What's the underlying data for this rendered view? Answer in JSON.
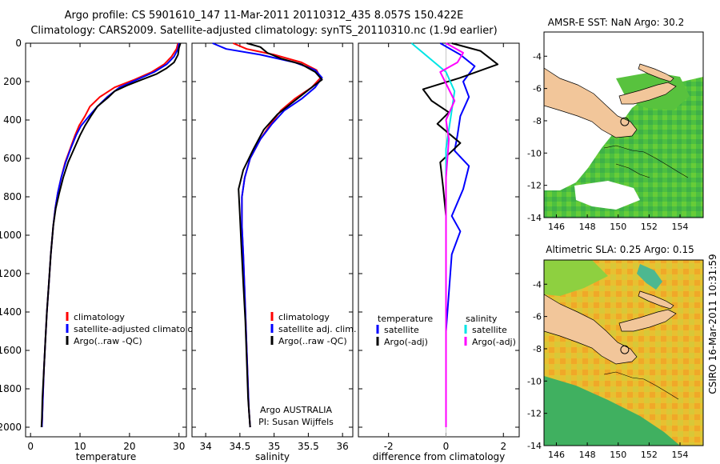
{
  "header": {
    "line1": "Argo profile: CS 5901610_147 11-Mar-2011 20110312_435 8.057S 150.422E",
    "line2": "Climatology: CARS2009. Satellite-adjusted climatology: synTS_20110310.nc (1.9d earlier)"
  },
  "credit": "CSIRO 16-Mar-2011 10:31:59",
  "colors": {
    "climatology": "#ff0000",
    "satellite": "#0000ff",
    "argo": "#000000",
    "sal_satellite": "#00e5e5",
    "sal_argo": "#ff00ff",
    "land": "#f2c69a"
  },
  "chart_data": [
    {
      "type": "line",
      "xlabel": "temperature",
      "ylabel": "",
      "xlim": [
        -1,
        31.5
      ],
      "ylim": [
        2050,
        0
      ],
      "y_reversed": true,
      "xticks": [
        0,
        10,
        20,
        30
      ],
      "yticks": [
        0,
        200,
        400,
        600,
        800,
        1000,
        1200,
        1400,
        1600,
        1800,
        2000
      ],
      "legend_position": "lower-right",
      "series": [
        {
          "name": "climatology",
          "color": "#ff0000",
          "x": [
            29.8,
            29.5,
            28.5,
            27.0,
            24.5,
            21.0,
            17.0,
            14.0,
            12.0,
            11.0,
            9.8,
            9.0,
            8.0,
            7.0,
            6.2,
            5.5,
            5.0,
            4.6,
            4.1,
            3.7,
            3.3,
            3.0,
            2.7,
            2.5,
            2.3
          ],
          "y": [
            0,
            30,
            70,
            110,
            150,
            190,
            230,
            280,
            330,
            380,
            430,
            480,
            550,
            620,
            700,
            780,
            860,
            950,
            1100,
            1250,
            1400,
            1550,
            1700,
            1850,
            2000
          ]
        },
        {
          "name": "satellite-adjusted climatology",
          "color": "#0000ff",
          "x": [
            30.0,
            29.8,
            29.0,
            27.5,
            25.0,
            21.5,
            18.0,
            15.5,
            13.5,
            11.8,
            10.2,
            9.2,
            8.1,
            7.1,
            6.2,
            5.5,
            5.0,
            4.6,
            4.1,
            3.7,
            3.3,
            3.0,
            2.7,
            2.5,
            2.3
          ],
          "y": [
            0,
            30,
            70,
            110,
            150,
            190,
            230,
            280,
            330,
            380,
            430,
            480,
            550,
            620,
            700,
            780,
            860,
            950,
            1100,
            1250,
            1400,
            1550,
            1700,
            1850,
            2000
          ]
        },
        {
          "name": "Argo(..raw -QC)",
          "color": "#000000",
          "x": [
            30.3,
            30.0,
            29.8,
            29.0,
            27.5,
            25.5,
            22.5,
            19.5,
            17.0,
            15.8,
            13.5,
            12.2,
            11.0,
            10.0,
            8.8,
            7.6,
            6.6,
            5.8,
            5.1,
            4.6,
            4.1,
            3.7,
            3.3,
            3.0,
            2.7,
            2.4,
            2.3,
            2.2
          ],
          "y": [
            0,
            25,
            60,
            100,
            130,
            160,
            190,
            220,
            250,
            280,
            330,
            380,
            430,
            480,
            550,
            620,
            700,
            780,
            860,
            950,
            1100,
            1250,
            1400,
            1550,
            1700,
            1850,
            1950,
            2000
          ]
        }
      ]
    },
    {
      "type": "line",
      "xlabel": "salinity",
      "ylabel": "",
      "xlim": [
        33.8,
        36.15
      ],
      "ylim": [
        2050,
        0
      ],
      "y_reversed": true,
      "xticks": [
        34,
        34.5,
        35,
        35.5,
        36
      ],
      "legend_position": "lower-right",
      "annotations": [
        "Argo AUSTRALIA",
        "PI: Susan Wijffels"
      ],
      "series": [
        {
          "name": "climatology",
          "color": "#ff0000",
          "x": [
            34.4,
            34.6,
            35.0,
            35.4,
            35.62,
            35.68,
            35.55,
            35.3,
            35.1,
            34.95,
            34.8,
            34.65,
            34.57,
            34.53,
            34.53,
            34.55,
            34.57,
            34.59,
            34.61,
            34.63,
            34.65
          ],
          "y": [
            0,
            30,
            60,
            100,
            140,
            180,
            230,
            290,
            350,
            420,
            500,
            600,
            700,
            800,
            950,
            1100,
            1300,
            1500,
            1700,
            1900,
            2000
          ]
        },
        {
          "name": "satellite adj. clim.",
          "color": "#0000ff",
          "x": [
            34.1,
            34.3,
            34.8,
            35.3,
            35.6,
            35.7,
            35.6,
            35.4,
            35.15,
            34.97,
            34.8,
            34.65,
            34.57,
            34.53,
            34.53,
            34.55,
            34.57,
            34.59,
            34.61,
            34.63,
            34.65
          ],
          "y": [
            0,
            30,
            60,
            100,
            140,
            180,
            230,
            290,
            350,
            420,
            500,
            600,
            700,
            800,
            950,
            1100,
            1300,
            1500,
            1700,
            1900,
            2000
          ]
        },
        {
          "name": "Argo(..raw -QC)",
          "color": "#000000",
          "x": [
            34.6,
            34.8,
            34.9,
            35.1,
            35.4,
            35.6,
            35.7,
            35.55,
            35.3,
            35.05,
            34.85,
            34.7,
            34.55,
            34.48,
            34.5,
            34.52,
            34.55,
            34.58,
            34.6,
            34.62,
            34.64,
            34.65
          ],
          "y": [
            0,
            20,
            50,
            80,
            110,
            150,
            190,
            230,
            300,
            370,
            450,
            550,
            660,
            760,
            900,
            1050,
            1250,
            1450,
            1650,
            1850,
            1950,
            2000
          ]
        }
      ]
    },
    {
      "type": "line",
      "xlabel": "difference from climatology",
      "ylabel": "",
      "xlim": [
        -3.05,
        2.55
      ],
      "ylim": [
        2050,
        0
      ],
      "y_reversed": true,
      "xticks": [
        -2,
        0,
        2
      ],
      "legend_position": "lower-center",
      "legend_titles": [
        "temperature",
        "salinity"
      ],
      "series": [
        {
          "name": "satellite",
          "group": "temperature",
          "color": "#0000ff",
          "x": [
            -0.2,
            0.5,
            1.0,
            0.6,
            0.8,
            0.5,
            0.4,
            0.3,
            0.8,
            0.6,
            0.2,
            0.5,
            0.2,
            0.1,
            0.0,
            0.0,
            0.0
          ],
          "y": [
            0,
            60,
            120,
            200,
            280,
            380,
            480,
            560,
            640,
            760,
            900,
            980,
            1100,
            1300,
            1500,
            1750,
            2000
          ]
        },
        {
          "name": "Argo(-adj)",
          "group": "temperature",
          "color": "#000000",
          "x": [
            0.2,
            1.2,
            1.8,
            0.5,
            -0.8,
            -0.5,
            0.1,
            -0.3,
            0.5,
            -0.2,
            -0.1,
            0.0,
            0.0,
            0.0
          ],
          "y": [
            0,
            40,
            110,
            180,
            240,
            300,
            360,
            420,
            520,
            620,
            750,
            900,
            1200,
            2000
          ]
        },
        {
          "name": "satellite",
          "group": "salinity",
          "color": "#00e5e5",
          "x": [
            -1.2,
            -0.8,
            -0.4,
            0.0,
            0.3,
            0.2,
            0.1,
            0.0,
            0.0,
            0.0,
            0.0
          ],
          "y": [
            0,
            50,
            100,
            150,
            250,
            350,
            450,
            550,
            700,
            1000,
            2000
          ]
        },
        {
          "name": "Argo(-adj)",
          "group": "salinity",
          "color": "#ff00ff",
          "x": [
            0.0,
            0.6,
            0.4,
            -0.2,
            0.3,
            0.0,
            0.1,
            0.0,
            0.0,
            0.0
          ],
          "y": [
            0,
            50,
            100,
            150,
            300,
            400,
            500,
            700,
            1000,
            2000
          ]
        }
      ]
    },
    {
      "type": "heatmap",
      "title": "AMSR-E SST: NaN Argo: 30.2",
      "xlim": [
        145.2,
        155.5
      ],
      "ylim": [
        -14,
        -2.5
      ],
      "xticks": [
        146,
        148,
        150,
        152,
        154
      ],
      "yticks": [
        -4,
        -6,
        -8,
        -10,
        -12,
        -14
      ],
      "marker": {
        "lon": 150.422,
        "lat": -8.057
      }
    },
    {
      "type": "heatmap",
      "title": "Altimetric SLA: 0.25 Argo: 0.15",
      "xlim": [
        145.2,
        155.5
      ],
      "ylim": [
        -14,
        -2.5
      ],
      "xticks": [
        146,
        148,
        150,
        152,
        154
      ],
      "yticks": [
        -4,
        -6,
        -8,
        -10,
        -12,
        -14
      ],
      "marker": {
        "lon": 150.422,
        "lat": -8.057
      }
    }
  ]
}
